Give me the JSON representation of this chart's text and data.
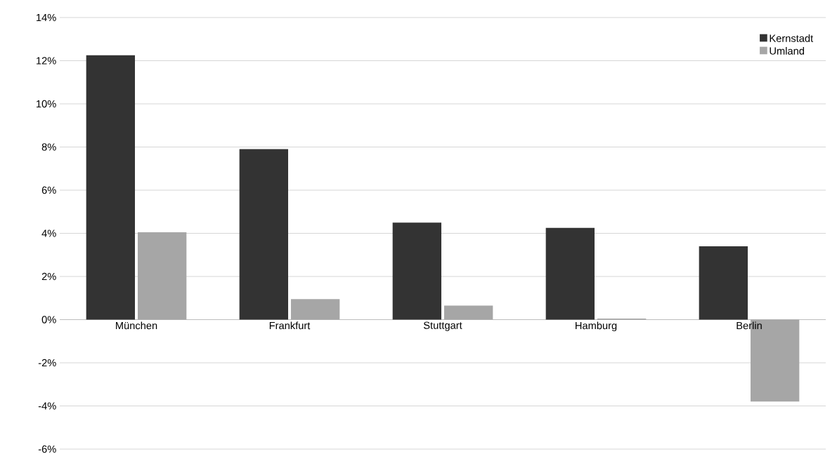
{
  "chart_data": {
    "type": "bar",
    "categories": [
      "München",
      "Frankfurt",
      "Stuttgart",
      "Hamburg",
      "Berlin"
    ],
    "series": [
      {
        "name": "Kernstadt",
        "color": "#333333",
        "values": [
          12.25,
          7.9,
          4.5,
          4.25,
          3.4
        ]
      },
      {
        "name": "Umland",
        "color": "#a6a6a6",
        "values": [
          4.05,
          0.95,
          0.65,
          0.05,
          -3.8
        ]
      }
    ],
    "ylim": [
      -6,
      14
    ],
    "yticks": [
      {
        "value": -6,
        "label": "-6%"
      },
      {
        "value": -4,
        "label": "-4%"
      },
      {
        "value": -2,
        "label": "-2%"
      },
      {
        "value": 0,
        "label": "0%"
      },
      {
        "value": 2,
        "label": "2%"
      },
      {
        "value": 4,
        "label": "4%"
      },
      {
        "value": 6,
        "label": "6%"
      },
      {
        "value": 8,
        "label": "8%"
      },
      {
        "value": 10,
        "label": "10%"
      },
      {
        "value": 12,
        "label": "12%"
      },
      {
        "value": 14,
        "label": "14%"
      }
    ],
    "grid": "y",
    "legend": "top right"
  }
}
